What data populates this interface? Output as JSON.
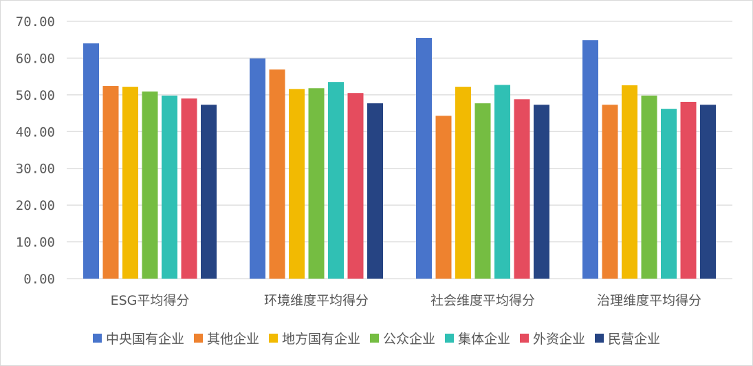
{
  "chart_data": {
    "type": "bar",
    "title": "",
    "xlabel": "",
    "ylabel": "",
    "ylim": [
      0,
      70
    ],
    "yticks": [
      "0.00",
      "10.00",
      "20.00",
      "30.00",
      "40.00",
      "50.00",
      "60.00",
      "70.00"
    ],
    "grid": true,
    "legend_position": "bottom",
    "categories": [
      "ESG平均得分",
      "环境维度平均得分",
      "社会维度平均得分",
      "治理维度平均得分"
    ],
    "series": [
      {
        "name": "中央国有企业",
        "color": "#4874CB",
        "values": [
          64.0,
          59.9,
          65.5,
          64.9
        ]
      },
      {
        "name": "其他企业",
        "color": "#EE822F",
        "values": [
          52.4,
          56.9,
          44.3,
          47.3
        ]
      },
      {
        "name": "地方国有企业",
        "color": "#F2BA02",
        "values": [
          52.2,
          51.6,
          52.2,
          52.6
        ]
      },
      {
        "name": "公众企业",
        "color": "#75BD42",
        "values": [
          50.9,
          51.8,
          47.7,
          49.8
        ]
      },
      {
        "name": "集体企业",
        "color": "#30C0B4",
        "values": [
          49.8,
          53.5,
          52.7,
          46.2
        ]
      },
      {
        "name": "外资企业",
        "color": "#E54C5E",
        "values": [
          49.0,
          50.5,
          48.8,
          48.1
        ]
      },
      {
        "name": "民营企业",
        "color": "#264483",
        "values": [
          47.3,
          47.7,
          47.3,
          47.3
        ]
      }
    ]
  }
}
